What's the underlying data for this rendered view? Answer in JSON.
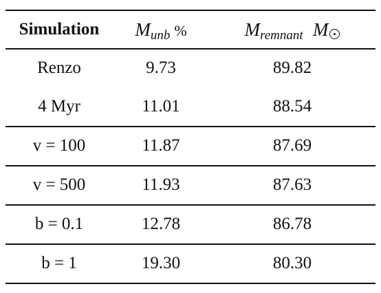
{
  "header": {
    "col1": "Simulation",
    "col2_var": "M",
    "col2_sub": "unb",
    "col2_unit": "%",
    "col3_var": "M",
    "col3_sub": "remnant",
    "col3_unit_var": "M",
    "col3_unit_symbol": "sun-symbol"
  },
  "rows": [
    {
      "simulation": "Renzo",
      "m_unb": "9.73",
      "m_remnant": "89.82"
    },
    {
      "simulation": "4 Myr",
      "m_unb": "11.01",
      "m_remnant": "88.54"
    },
    {
      "simulation": "v = 100",
      "m_unb": "11.87",
      "m_remnant": "87.69"
    },
    {
      "simulation": "v = 500",
      "m_unb": "11.93",
      "m_remnant": "87.63"
    },
    {
      "simulation": "b = 0.1",
      "m_unb": "12.78",
      "m_remnant": "86.78"
    },
    {
      "simulation": "b = 1",
      "m_unb": "19.30",
      "m_remnant": "80.30"
    }
  ]
}
